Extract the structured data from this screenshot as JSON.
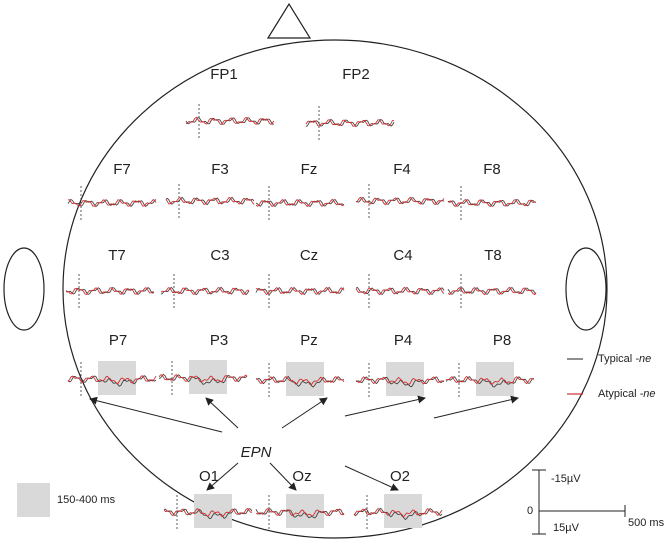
{
  "electrodes": [
    {
      "label": "FP1"
    },
    {
      "label": "FP2"
    },
    {
      "label": "F7"
    },
    {
      "label": "F3"
    },
    {
      "label": "Fz"
    },
    {
      "label": "F4"
    },
    {
      "label": "F8"
    },
    {
      "label": "T7"
    },
    {
      "label": "C3"
    },
    {
      "label": "Cz"
    },
    {
      "label": "C4"
    },
    {
      "label": "T8"
    },
    {
      "label": "P7"
    },
    {
      "label": "P3"
    },
    {
      "label": "Pz"
    },
    {
      "label": "P4"
    },
    {
      "label": "P8"
    },
    {
      "label": "O1"
    },
    {
      "label": "Oz"
    },
    {
      "label": "O2"
    }
  ],
  "component": "EPN",
  "legend": {
    "items": [
      {
        "name": "Typical",
        "qualifier": "-ne",
        "color": "#444444"
      },
      {
        "name": "Atypical",
        "qualifier": "-ne",
        "color": "#d03030"
      }
    ]
  },
  "window": {
    "label": "150-400 ms"
  },
  "scale": {
    "negative": "-15µV",
    "zero": "0",
    "positive": "15µV",
    "time": "500 ms"
  }
}
